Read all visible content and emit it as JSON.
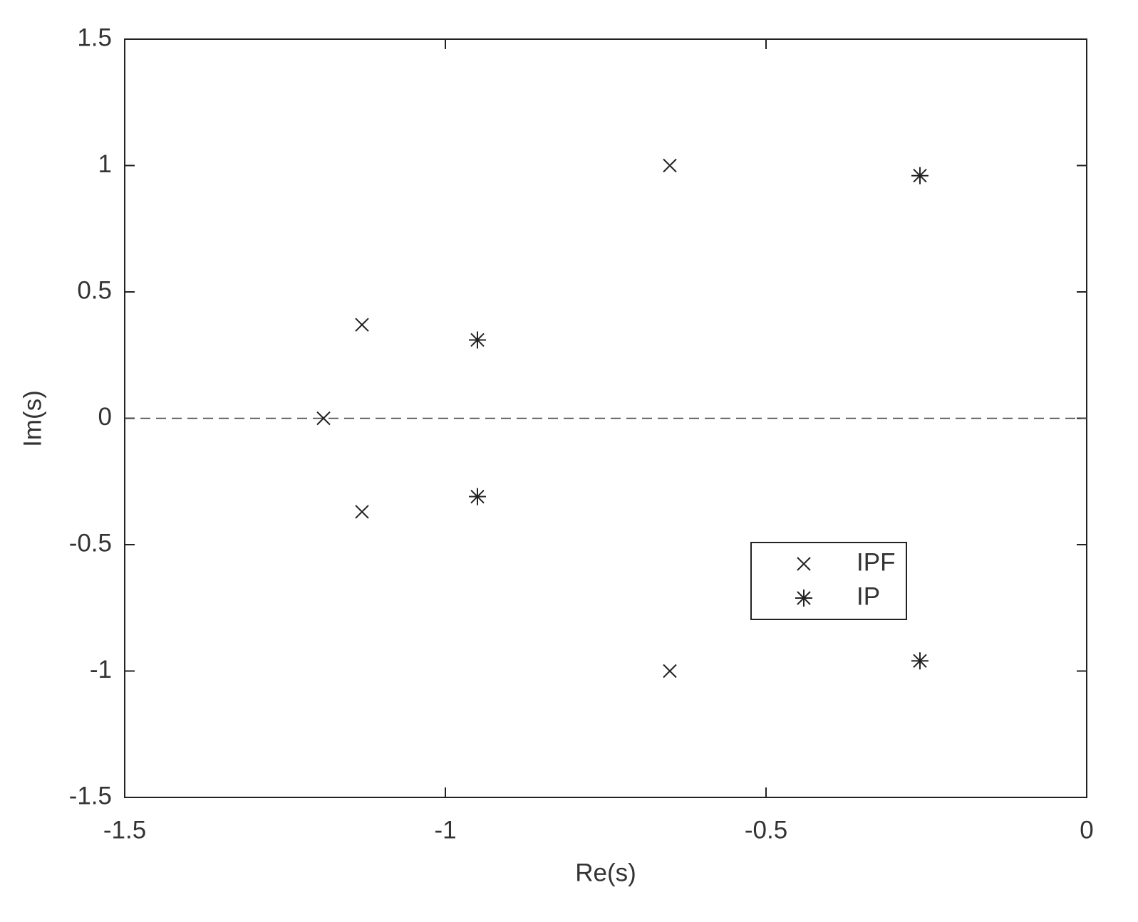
{
  "chart_data": {
    "type": "scatter",
    "x_label": "Re(s)",
    "y_label": "Im(s)",
    "series": [
      {
        "name": "IPF",
        "marker": "x",
        "color": "#222222",
        "x": [
          -0.65,
          -1.13,
          -1.19,
          -1.13,
          -0.65
        ],
        "values": [
          1.0,
          0.37,
          0,
          -0.37,
          -1.0
        ]
      },
      {
        "name": "IP",
        "marker": "*",
        "color": "#222222",
        "x": [
          -0.26,
          -0.95,
          -0.95,
          -0.26
        ],
        "values": [
          0.96,
          0.31,
          -0.31,
          -0.96
        ]
      }
    ],
    "hline": 0,
    "xlim": [
      -1.5,
      0
    ],
    "ylim": [
      -1.5,
      1.5
    ],
    "xticks": [
      -1.5,
      -1,
      -0.5,
      0
    ],
    "yticks": [
      -1.5,
      -1,
      -0.5,
      0,
      0.5,
      1,
      1.5
    ],
    "grid": false
  }
}
